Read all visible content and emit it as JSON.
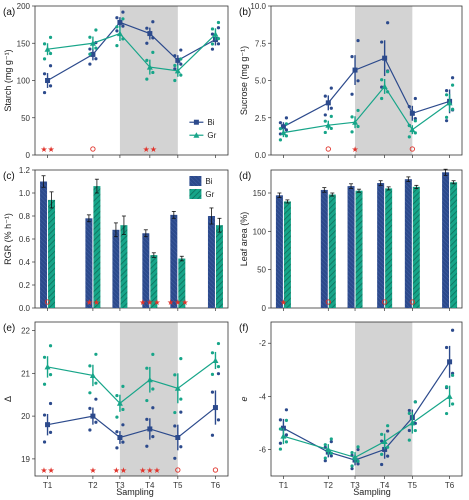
{
  "colors": {
    "Bi": "#2c4a8c",
    "Gr": "#17a589",
    "shade": "#d3d3d3",
    "sig": "#e0322a"
  },
  "xlabel": "Sampling",
  "sampling_labels": [
    "T1",
    "T2",
    "T3",
    "T4",
    "T5",
    "T6"
  ],
  "legend": {
    "Bi": "Bi",
    "Gr": "Gr"
  },
  "chart_data": [
    {
      "panel": "(a)",
      "type": "line",
      "ylabel": "Starch (mg g⁻¹)",
      "ylim": [
        0,
        200
      ],
      "yticks": [
        0,
        50,
        100,
        150,
        200
      ],
      "shaded": [
        "T3",
        "T5"
      ],
      "categories": [
        "T1",
        "T2",
        "T3",
        "T4",
        "T5",
        "T6"
      ],
      "series": [
        {
          "name": "Bi",
          "values": [
            100,
            135,
            178,
            163,
            127,
            155
          ],
          "err": [
            10,
            8,
            7,
            8,
            7,
            8
          ]
        },
        {
          "name": "Gr",
          "values": [
            142,
            150,
            163,
            118,
            113,
            162
          ],
          "err": [
            8,
            9,
            10,
            10,
            8,
            8
          ]
        }
      ],
      "significance": [
        "**",
        "o",
        "",
        "**",
        "",
        ""
      ]
    },
    {
      "panel": "(b)",
      "type": "line",
      "ylabel": "Sucrose (mg g⁻¹)",
      "ylim": [
        0,
        10
      ],
      "yticks": [
        0.0,
        2.5,
        5.0,
        7.5,
        10.0
      ],
      "shaded": [
        "T3",
        "T5"
      ],
      "categories": [
        "T1",
        "T2",
        "T3",
        "T4",
        "T5",
        "T6"
      ],
      "series": [
        {
          "name": "Bi",
          "values": [
            1.9,
            3.5,
            5.7,
            6.5,
            2.8,
            3.6
          ],
          "err": [
            0.3,
            0.5,
            1.0,
            1.2,
            0.5,
            0.8
          ]
        },
        {
          "name": "Gr",
          "values": [
            1.5,
            2.0,
            2.2,
            4.6,
            1.7,
            3.5
          ],
          "err": [
            0.3,
            0.3,
            0.4,
            0.5,
            0.3,
            0.6
          ]
        }
      ],
      "significance": [
        "",
        "o",
        "*",
        "",
        "o",
        ""
      ]
    },
    {
      "panel": "(c)",
      "type": "bar",
      "ylabel": "RGR (% h⁻¹)",
      "ylim": [
        0,
        1.2
      ],
      "yticks": [
        0.0,
        0.2,
        0.4,
        0.6,
        0.8,
        1.0,
        1.2
      ],
      "categories": [
        "T1",
        "T2",
        "T3",
        "T4",
        "T5",
        "T6"
      ],
      "series": [
        {
          "name": "Bi",
          "values": [
            1.1,
            0.78,
            0.68,
            0.65,
            0.81,
            0.8
          ],
          "err": [
            0.05,
            0.03,
            0.06,
            0.03,
            0.03,
            0.07
          ]
        },
        {
          "name": "Gr",
          "values": [
            0.94,
            1.06,
            0.72,
            0.46,
            0.43,
            0.72
          ],
          "err": [
            0.07,
            0.06,
            0.08,
            0.02,
            0.02,
            0.06
          ]
        }
      ],
      "significance": [
        "o",
        "**",
        "",
        "***",
        "***",
        ""
      ]
    },
    {
      "panel": "(d)",
      "type": "bar",
      "ylabel": "Leaf area (%)",
      "ylim": [
        0,
        180
      ],
      "yticks": [
        0,
        50,
        100,
        150
      ],
      "categories": [
        "T1",
        "T2",
        "T3",
        "T4",
        "T5",
        "T6"
      ],
      "series": [
        {
          "name": "Bi",
          "values": [
            147,
            154,
            159,
            163,
            168,
            177
          ],
          "err": [
            3,
            3,
            3,
            3,
            3,
            4
          ]
        },
        {
          "name": "Gr",
          "values": [
            139,
            148,
            153,
            156,
            158,
            164
          ],
          "err": [
            2,
            2,
            2,
            2,
            2,
            2
          ]
        }
      ],
      "significance": [
        "*",
        "o",
        "",
        "o",
        "o",
        ""
      ]
    },
    {
      "panel": "(e)",
      "type": "line",
      "ylabel": "Δ",
      "ylim": [
        18.6,
        22.2
      ],
      "yticks": [
        19,
        20,
        21,
        22
      ],
      "shaded": [
        "T3",
        "T5"
      ],
      "categories": [
        "T1",
        "T2",
        "T3",
        "T4",
        "T5",
        "T6"
      ],
      "series": [
        {
          "name": "Bi",
          "values": [
            19.8,
            20.0,
            19.5,
            19.7,
            19.5,
            20.2
          ],
          "err": [
            0.25,
            0.2,
            0.15,
            0.25,
            0.3,
            0.4
          ]
        },
        {
          "name": "Gr",
          "values": [
            21.15,
            20.95,
            20.3,
            20.85,
            20.65,
            21.3
          ],
          "err": [
            0.25,
            0.25,
            0.2,
            0.3,
            0.35,
            0.2
          ]
        }
      ],
      "significance": [
        "**",
        "*",
        "**",
        "***",
        "o",
        "o"
      ]
    },
    {
      "panel": "(f)",
      "type": "line",
      "ylabel": "e",
      "ylim": [
        -7,
        -1.2
      ],
      "yticks": [
        -6,
        -4,
        -2
      ],
      "shaded": [
        "T3",
        "T5"
      ],
      "categories": [
        "T1",
        "T2",
        "T3",
        "T4",
        "T5",
        "T6"
      ],
      "series": [
        {
          "name": "Bi",
          "values": [
            -5.2,
            -6.1,
            -6.4,
            -6.0,
            -4.8,
            -2.7
          ],
          "err": [
            0.35,
            0.2,
            0.2,
            0.35,
            0.3,
            0.6
          ]
        },
        {
          "name": "Gr",
          "values": [
            -5.5,
            -6.0,
            -6.3,
            -5.7,
            -5.0,
            -4.0
          ],
          "err": [
            0.3,
            0.2,
            0.2,
            0.3,
            0.4,
            0.4
          ]
        }
      ],
      "significance": [
        "",
        "",
        "",
        "",
        "",
        ""
      ]
    }
  ]
}
